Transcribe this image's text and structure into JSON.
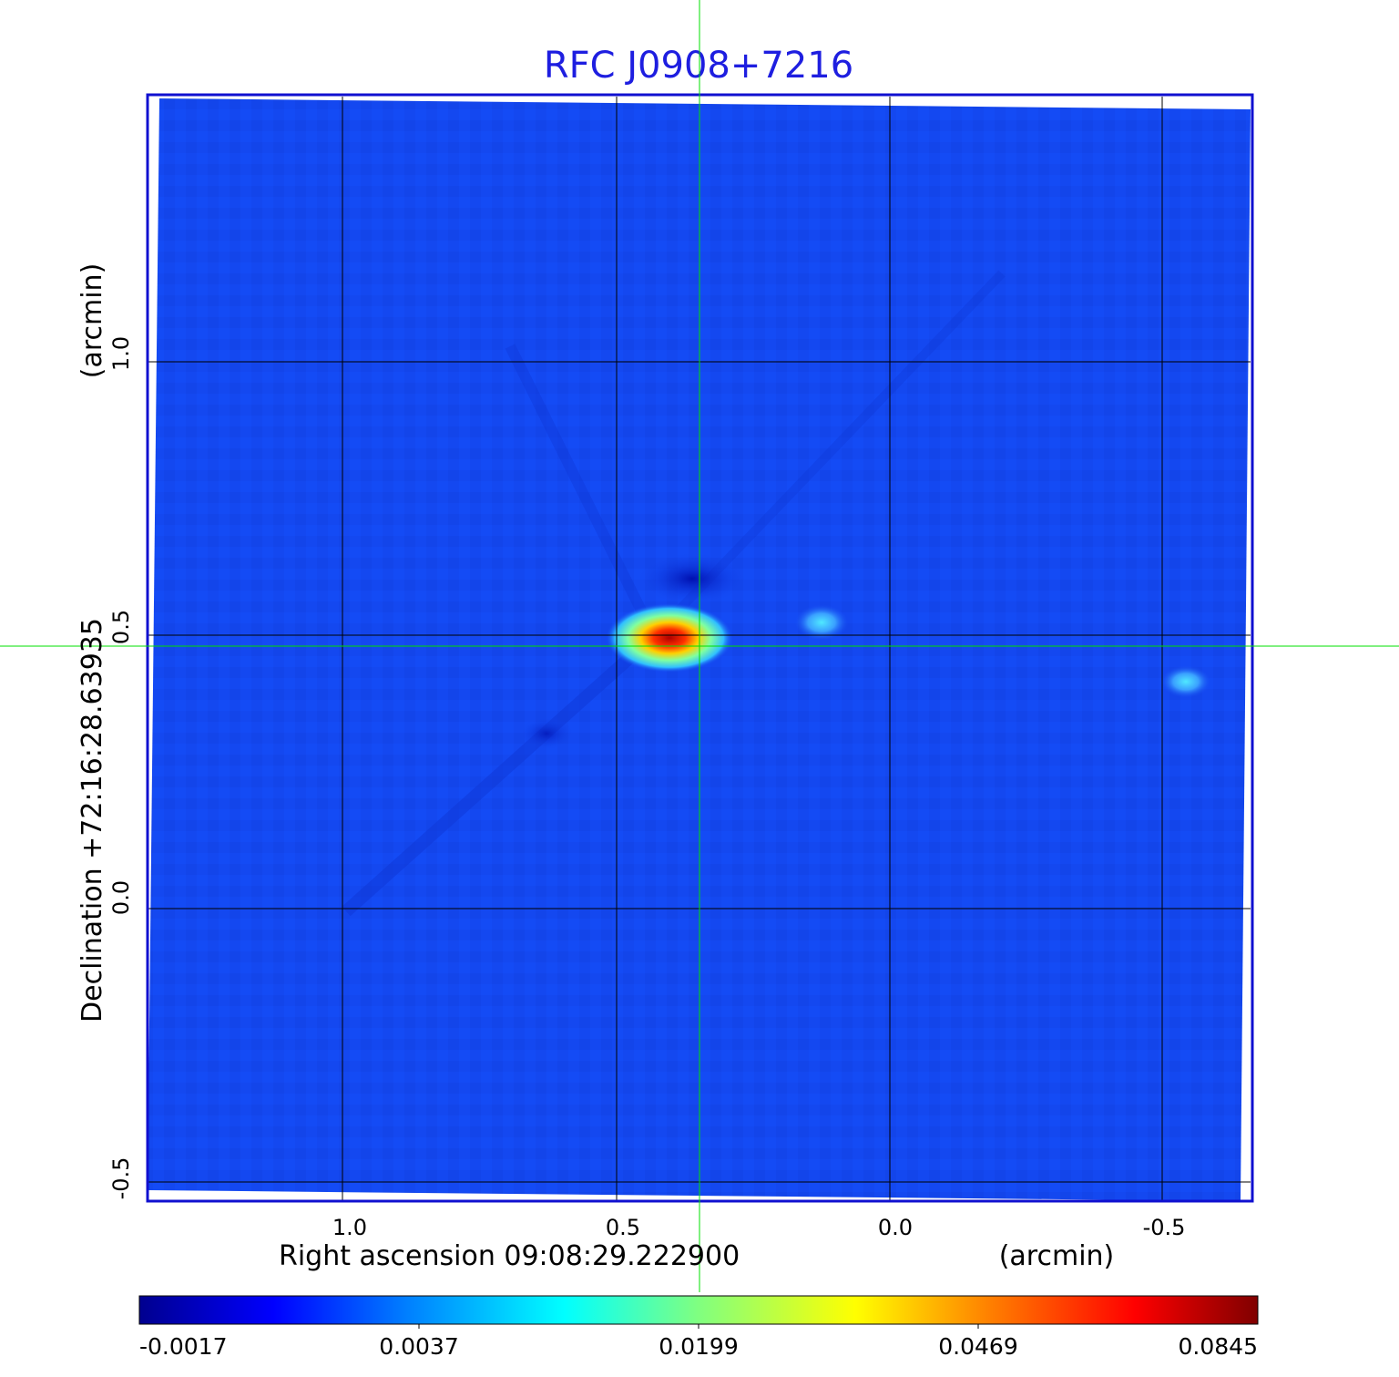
{
  "title": "RFC J0908+7216",
  "axes": {
    "x_label": "Right ascension  09:08:29.222900",
    "x_unit": "(arcmin)",
    "y_label": "Declination  +72:16:28.63935",
    "y_unit": "(arcmin)",
    "x_ticks": [
      "1.0",
      "0.5",
      "0.0",
      "-0.5"
    ],
    "y_ticks": [
      "1.0",
      "0.5",
      "0.0",
      "-0.5"
    ]
  },
  "colorbar": {
    "labels": [
      "-0.0017",
      "0.0037",
      "0.0199",
      "0.0469",
      "0.0845"
    ],
    "colormap": "jet",
    "stops": [
      "#00008f",
      "#0000ff",
      "#0080ff",
      "#00ffff",
      "#80ff80",
      "#ffff00",
      "#ff8000",
      "#ff0000",
      "#800000"
    ]
  },
  "image": {
    "background_color": "#1448f0",
    "frame_color": "#1010d0",
    "grid_color": "#000000",
    "crosshair_color": "#00e000",
    "sources": [
      "bright source near center",
      "faint source right of center",
      "faint source near right edge"
    ]
  }
}
